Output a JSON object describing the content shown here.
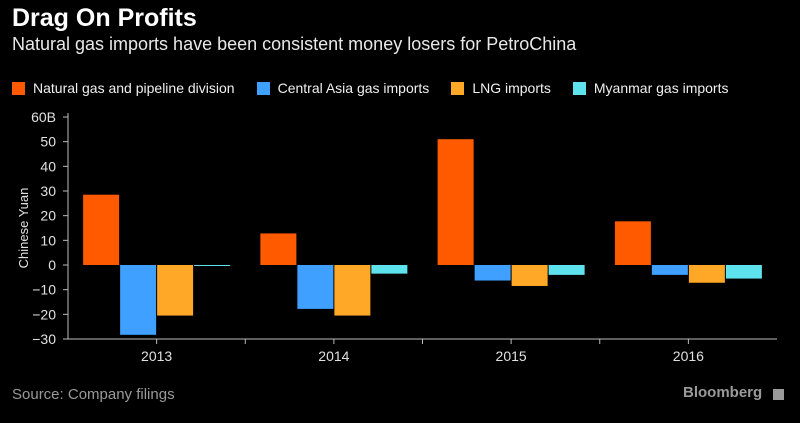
{
  "title": "Drag On Profits",
  "subtitle": "Natural gas imports have been consistent money losers for PetroChina",
  "source": "Source: Company filings",
  "brand": "Bloomberg",
  "chart_data": {
    "type": "bar",
    "categories": [
      "2013",
      "2014",
      "2015",
      "2016"
    ],
    "series": [
      {
        "name": "Natural gas and pipeline division",
        "color": "#ff5a00",
        "values": [
          28.5,
          12.8,
          51.0,
          17.7
        ]
      },
      {
        "name": "Central Asia gas imports",
        "color": "#3fa0ff",
        "values": [
          -28.3,
          -17.8,
          -6.3,
          -4.0
        ]
      },
      {
        "name": "LNG imports",
        "color": "#ffa726",
        "values": [
          -20.5,
          -20.5,
          -8.5,
          -7.2
        ]
      },
      {
        "name": "Myanmar gas imports",
        "color": "#5ee3ee",
        "values": [
          -0.3,
          -3.5,
          -4.0,
          -5.5
        ]
      }
    ],
    "ylabel": "Chinese Yuan",
    "ylim": [
      -30,
      60
    ],
    "yticks": [
      "−30",
      "−20",
      "−10",
      "0",
      "10",
      "20",
      "30",
      "40",
      "50",
      "60B"
    ],
    "grid": false,
    "legend": "top"
  }
}
